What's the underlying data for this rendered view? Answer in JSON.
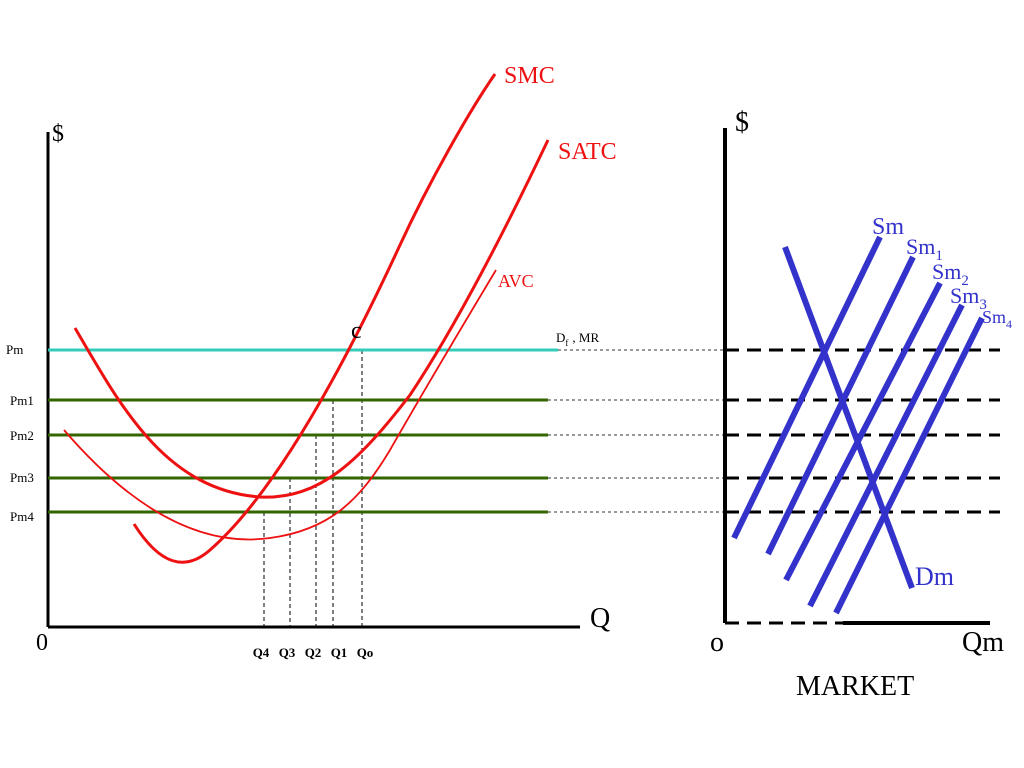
{
  "colors": {
    "red": "#ee1111",
    "teal": "#33ccbb",
    "green": "#336600",
    "blue": "#3333cc",
    "black": "#000000"
  },
  "firm": {
    "y_axis_label": "$",
    "x_axis_label": "Q",
    "origin_label": "0",
    "curve_labels": {
      "smc": "SMC",
      "satc": "SATC",
      "avc": "AVC"
    },
    "point_label": "c",
    "demand_label_main": "D",
    "demand_label_sub": "f",
    "demand_label_rest": ", MR",
    "price_labels": [
      "Pm",
      "Pm1",
      "Pm2",
      "Pm3",
      "Pm4"
    ],
    "quantity_labels": [
      "Q4",
      "Q3",
      "Q2",
      "Q1",
      "Qo"
    ]
  },
  "market": {
    "y_axis_label": "$",
    "x_axis_label": "Qm",
    "origin_label": "o",
    "title": "MARKET",
    "demand_label": "Dm",
    "supply_labels": [
      {
        "main": "Sm",
        "sub": ""
      },
      {
        "main": "Sm",
        "sub": "1"
      },
      {
        "main": "Sm",
        "sub": "2"
      },
      {
        "main": "Sm",
        "sub": "3"
      },
      {
        "main": "Sm",
        "sub": "4"
      }
    ]
  }
}
